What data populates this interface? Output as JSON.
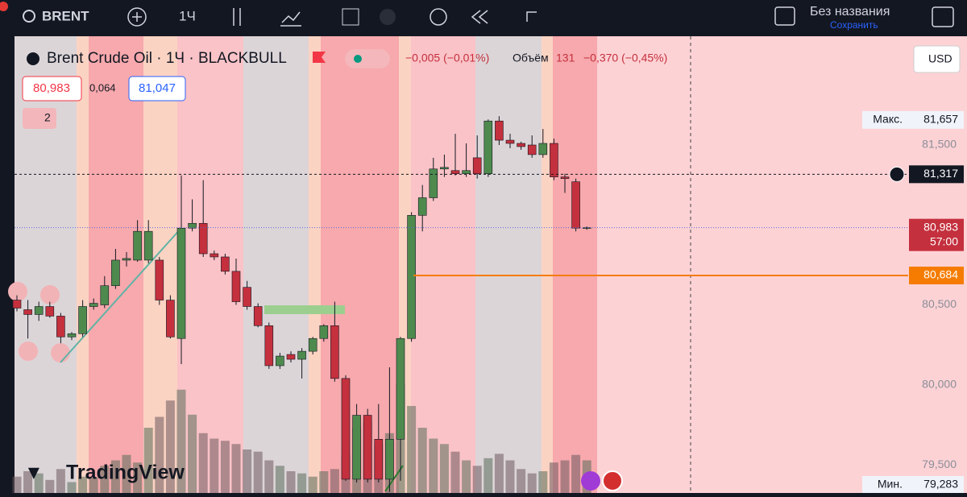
{
  "toolbar": {
    "symbol": "BRENT",
    "interval": "1Ч",
    "layout_name": "Без названия",
    "save": "Сохранить"
  },
  "legend": {
    "title": "Brent Crude Oil · 1Ч · BLACKBULL",
    "change": "−0,005 (−0,01%)",
    "volume_label": "Объём",
    "volume": "131",
    "volume_change": "−0,370 (−0,45%)",
    "bid": "80,983",
    "spread": "0,064",
    "ask": "81,047",
    "indicators": "2"
  },
  "currency": "USD",
  "watermark": "TradingView",
  "chart_data": {
    "type": "candlestick",
    "ylim": [
      79324,
      82180
    ],
    "yticks": [
      {
        "value": 81500,
        "label": "81,500"
      },
      {
        "value": 80500,
        "label": "80,500"
      },
      {
        "value": 80000,
        "label": "80,000"
      },
      {
        "value": 79500,
        "label": "79,500"
      }
    ],
    "up_color": "#4e8a4e",
    "down_color": "#c4303d",
    "ohlc": [
      [
        80530,
        80560,
        80460,
        80480
      ],
      [
        80470,
        80530,
        80290,
        80440
      ],
      [
        80440,
        80520,
        80400,
        80490
      ],
      [
        80490,
        80520,
        80420,
        80430
      ],
      [
        80430,
        80450,
        80260,
        80300
      ],
      [
        80300,
        80330,
        80280,
        80320
      ],
      [
        80320,
        80530,
        80300,
        80490
      ],
      [
        80490,
        80540,
        80470,
        80510
      ],
      [
        80500,
        80680,
        80480,
        80620
      ],
      [
        80620,
        80850,
        80600,
        80780
      ],
      [
        80780,
        80830,
        80740,
        80790
      ],
      [
        80780,
        81030,
        80770,
        80960
      ],
      [
        80780,
        81030,
        80760,
        80960
      ],
      [
        80780,
        80800,
        80500,
        80530
      ],
      [
        80530,
        80560,
        80290,
        80300
      ],
      [
        80290,
        81310,
        80130,
        80980
      ],
      [
        80980,
        81160,
        80960,
        81010
      ],
      [
        81010,
        81280,
        80800,
        80820
      ],
      [
        80820,
        80840,
        80780,
        80800
      ],
      [
        80800,
        80820,
        80690,
        80710
      ],
      [
        80710,
        80790,
        80500,
        80520
      ],
      [
        80610,
        80650,
        80470,
        80490
      ],
      [
        80490,
        80510,
        80360,
        80370
      ],
      [
        80370,
        80390,
        80100,
        80120
      ],
      [
        80120,
        80200,
        80100,
        80180
      ],
      [
        80190,
        80210,
        80140,
        80160
      ],
      [
        80160,
        80230,
        80040,
        80210
      ],
      [
        80210,
        80300,
        80190,
        80290
      ],
      [
        80290,
        80380,
        80270,
        80370
      ],
      [
        80370,
        80520,
        80020,
        80040
      ],
      [
        80040,
        80060,
        79400,
        79410
      ],
      [
        79410,
        79880,
        79390,
        79810
      ],
      [
        79810,
        79850,
        79390,
        79410
      ],
      [
        79660,
        79880,
        79390,
        79410
      ],
      [
        79410,
        80110,
        79330,
        79660
      ],
      [
        79660,
        80300,
        79400,
        80290
      ],
      [
        80290,
        81080,
        80270,
        81060
      ],
      [
        81060,
        81250,
        80960,
        81170
      ],
      [
        81170,
        81420,
        81150,
        81350
      ],
      [
        81350,
        81440,
        81300,
        81360
      ],
      [
        81340,
        81570,
        81310,
        81320
      ],
      [
        81320,
        81510,
        81300,
        81340
      ],
      [
        81420,
        81560,
        81290,
        81320
      ],
      [
        81320,
        81660,
        81300,
        81650
      ],
      [
        81650,
        81680,
        81500,
        81530
      ],
      [
        81530,
        81570,
        81480,
        81510
      ],
      [
        81510,
        81520,
        81470,
        81490
      ],
      [
        81500,
        81560,
        81420,
        81440
      ],
      [
        81440,
        81600,
        81420,
        81510
      ],
      [
        81510,
        81540,
        81280,
        81300
      ],
      [
        81300,
        81320,
        81200,
        81290
      ],
      [
        81270,
        81290,
        80960,
        80980
      ],
      [
        80980,
        80990,
        80970,
        80983
      ]
    ],
    "volume": [
      15,
      20,
      18,
      12,
      22,
      10,
      15,
      14,
      25,
      30,
      35,
      28,
      60,
      70,
      85,
      95,
      72,
      55,
      50,
      48,
      45,
      40,
      38,
      30,
      25,
      20,
      18,
      15,
      20,
      22,
      35,
      60,
      65,
      45,
      55,
      100,
      80,
      60,
      50,
      45,
      38,
      30,
      25,
      32,
      36,
      30,
      22,
      18,
      20,
      28,
      30,
      35,
      30
    ],
    "price_labels": [
      {
        "name": "Макс.",
        "value": 81657,
        "label": "81,657"
      },
      {
        "value": 81317,
        "label": "81,317"
      },
      {
        "value": 80983,
        "label": "80,983",
        "extra": "57:00"
      },
      {
        "value": 80684,
        "label": "80,684"
      },
      {
        "name": "Мин.",
        "value": 79283,
        "label": "79,283"
      }
    ]
  }
}
